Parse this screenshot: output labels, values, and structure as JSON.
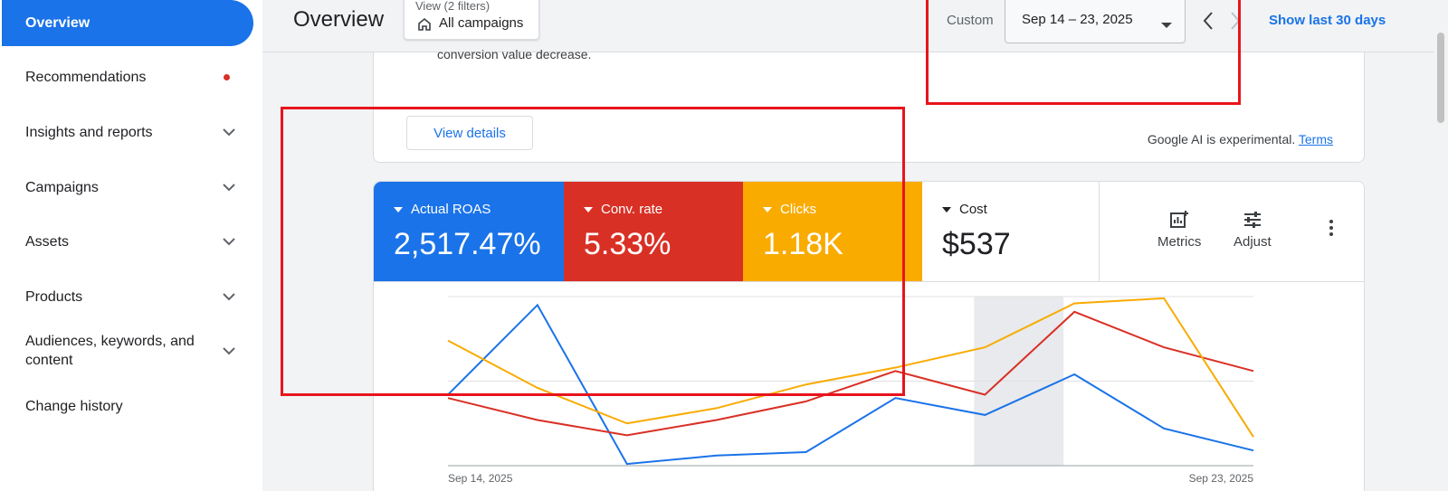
{
  "sidebar": {
    "active": "Overview",
    "items": [
      {
        "label": "Recommendations"
      },
      {
        "label": "Insights and reports"
      },
      {
        "label": "Campaigns"
      },
      {
        "label": "Assets"
      },
      {
        "label": "Products"
      },
      {
        "label": "Audiences, keywords, and content"
      },
      {
        "label": "Change history"
      }
    ]
  },
  "header": {
    "title": "Overview",
    "view_filters": "View (2 filters)",
    "view_value": "All campaigns",
    "custom_label": "Custom",
    "date_range": "Sep 14 – 23, 2025",
    "show_last": "Show last 30 days"
  },
  "insight": {
    "text": "conversion value decrease.",
    "view_details": "View details",
    "ai_note": "Google AI is experimental.",
    "terms": "Terms"
  },
  "metrics": [
    {
      "name": "Actual ROAS",
      "value": "2,517.47%",
      "color": "#1a73e8"
    },
    {
      "name": "Conv. rate",
      "value": "5.33%",
      "color": "#d93025"
    },
    {
      "name": "Clicks",
      "value": "1.18K",
      "color": "#f9ab00"
    },
    {
      "name": "Cost",
      "value": "$537",
      "color": "#ffffff"
    }
  ],
  "tools": {
    "metrics_label": "Metrics",
    "adjust_label": "Adjust"
  },
  "chart_data": {
    "type": "line",
    "x": [
      "Sep 14, 2025",
      "Sep 15",
      "Sep 16",
      "Sep 17",
      "Sep 18",
      "Sep 19",
      "Sep 20",
      "Sep 21",
      "Sep 22",
      "Sep 23, 2025"
    ],
    "x_tick_labels": [
      "Sep 14, 2025",
      "Sep 23, 2025"
    ],
    "highlight_index": 6,
    "series": [
      {
        "color": "#1a73e8",
        "values": [
          0.42,
          0.95,
          0.01,
          0.06,
          0.08,
          0.4,
          0.3,
          0.54,
          0.22,
          0.09
        ]
      },
      {
        "color": "#d93025",
        "values": [
          0.4,
          0.27,
          0.18,
          0.27,
          0.38,
          0.56,
          0.42,
          0.91,
          0.7,
          0.56
        ]
      },
      {
        "color": "#f9ab00",
        "values": [
          0.74,
          0.46,
          0.25,
          0.34,
          0.48,
          0.58,
          0.7,
          0.96,
          0.99,
          0.17
        ]
      }
    ],
    "ylim": [
      0,
      1
    ],
    "grid": true
  }
}
